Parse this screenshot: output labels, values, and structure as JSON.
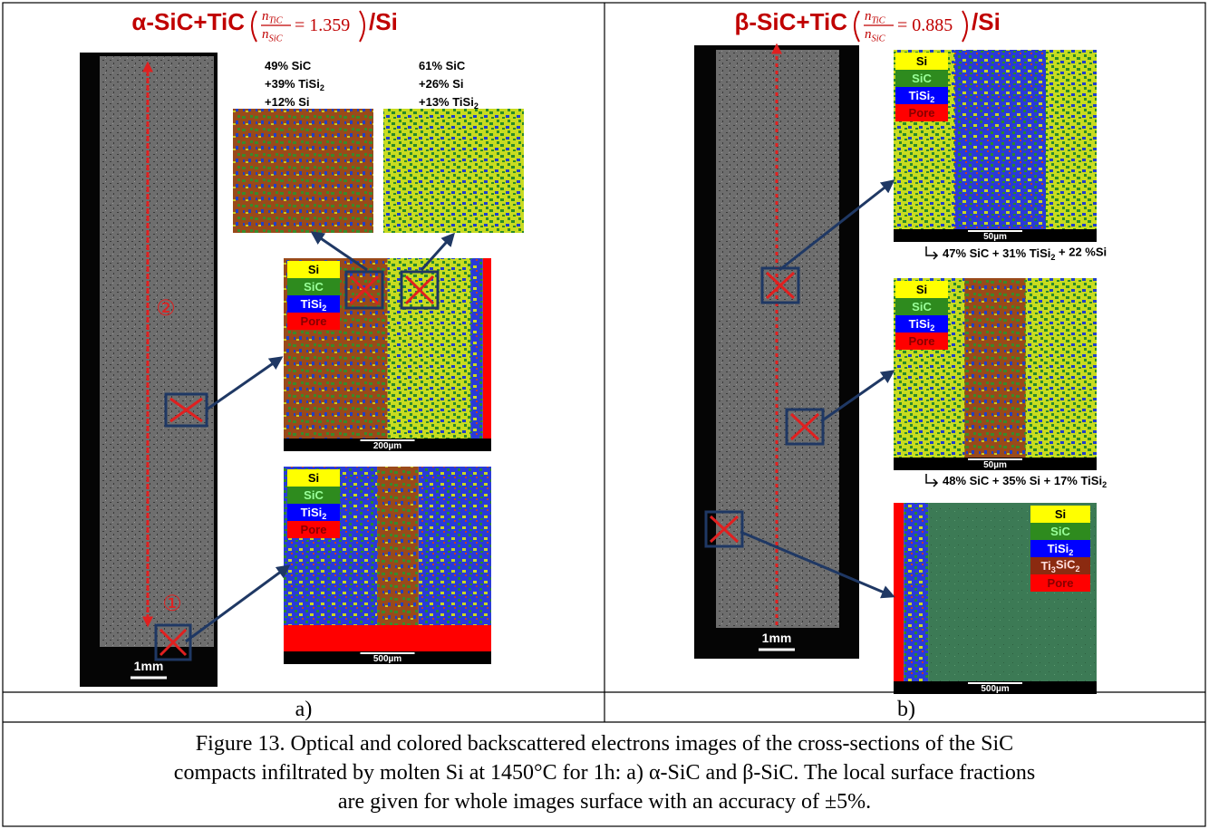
{
  "panels": [
    {
      "title": {
        "prefix": "α-SiC+TiC",
        "numerator": [
          "n",
          "TiC"
        ],
        "denominator": [
          "n",
          "SiC"
        ],
        "ratio": "= 1.359",
        "suffix": "/Si"
      },
      "label": "a)",
      "optical_scale": "1mm",
      "markers": [
        "②",
        "①"
      ],
      "compositions": [
        [
          [
            "49% SiC"
          ],
          [
            "+39% TiSi",
            "2"
          ],
          [
            "+12% Si"
          ]
        ],
        [
          [
            "61% SiC"
          ],
          [
            "+26% Si"
          ],
          [
            "+13% TiSi",
            "2"
          ]
        ]
      ],
      "maps": [
        {
          "legend": [
            [
              "Si"
            ],
            [
              "SiC"
            ],
            [
              "TiSi",
              "2"
            ],
            [
              "Pore"
            ]
          ],
          "scale": "200µm"
        },
        {
          "legend": [
            [
              "Si"
            ],
            [
              "SiC"
            ],
            [
              "TiSi",
              "2"
            ],
            [
              "Pore"
            ]
          ],
          "scale": "500µm"
        }
      ]
    },
    {
      "title": {
        "prefix": "β-SiC+TiC",
        "numerator": [
          "n",
          "TiC"
        ],
        "denominator": [
          "n",
          "SiC"
        ],
        "ratio": "= 0.885",
        "suffix": "/Si"
      },
      "label": "b)",
      "optical_scale": "1mm",
      "maps": [
        {
          "legend": [
            [
              "Si"
            ],
            [
              "SiC"
            ],
            [
              "TiSi",
              "2"
            ],
            [
              "Pore"
            ]
          ],
          "scale": "50µm",
          "summary": [
            "47% SiC + 31% TiSi",
            "2",
            " + 22 %Si"
          ]
        },
        {
          "legend": [
            [
              "Si"
            ],
            [
              "SiC"
            ],
            [
              "TiSi",
              "2"
            ],
            [
              "Pore"
            ]
          ],
          "scale": "50µm",
          "summary": [
            "48% SiC + 35% Si + 17% TiSi",
            "2"
          ]
        },
        {
          "legend": [
            [
              "Si"
            ],
            [
              "SiC"
            ],
            [
              "TiSi",
              "2"
            ],
            [
              "Ti",
              "3",
              "SiC",
              "2"
            ],
            [
              "Pore"
            ]
          ],
          "scale": "500µm"
        }
      ]
    }
  ],
  "caption": [
    "Figure 13. Optical and colored backscattered electrons images of the cross-sections of the SiC",
    "compacts infiltrated by molten Si at 1450°C for 1h: a) α-SiC and β-SiC. The local surface fractions",
    "are given for whole images surface with an accuracy of ±5%."
  ]
}
